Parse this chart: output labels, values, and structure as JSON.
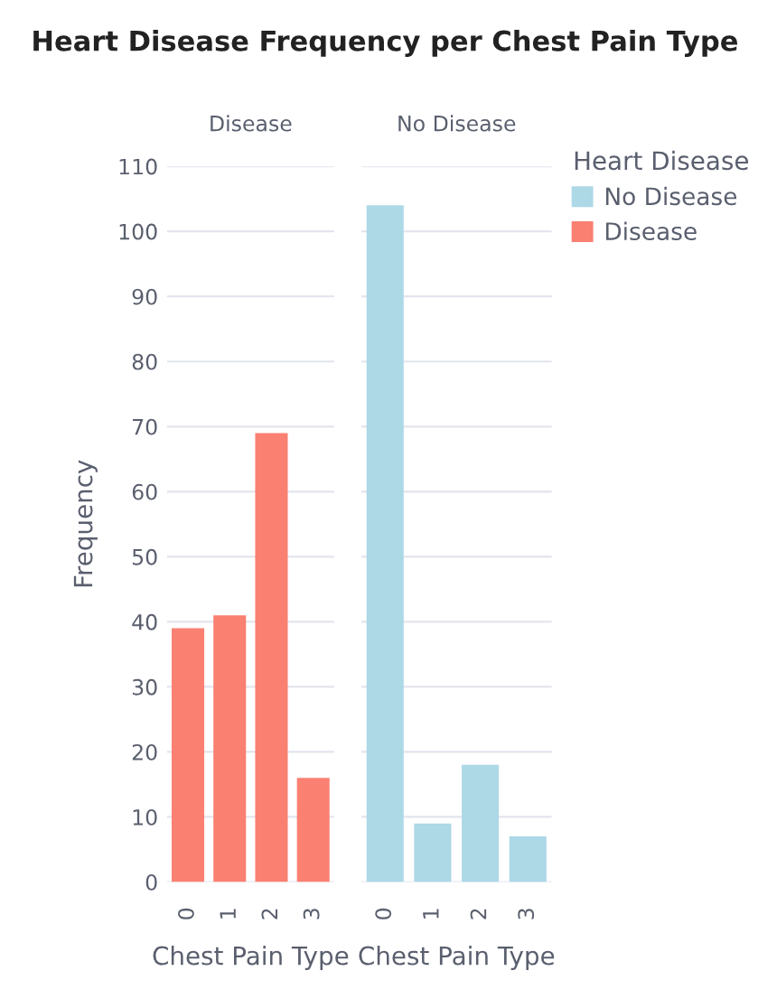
{
  "chart_data": [
    {
      "type": "bar",
      "title": "Heart Disease Frequency per Chest Pain Type",
      "subtitle": "Disease",
      "xlabel": "Chest Pain Type",
      "ylabel": "Frequency",
      "categories": [
        "0",
        "1",
        "2",
        "3"
      ],
      "series": [
        {
          "name": "Disease",
          "color": "#fa8072",
          "values": [
            39,
            41,
            69,
            16
          ]
        }
      ],
      "ylim": [
        0,
        110
      ],
      "yticks": [
        0,
        10,
        20,
        30,
        40,
        50,
        60,
        70,
        80,
        90,
        100,
        110
      ],
      "grid": "y",
      "legend": "right"
    },
    {
      "type": "bar",
      "subtitle": "No Disease",
      "xlabel": "Chest Pain Type",
      "legend_title": "Heart Disease",
      "categories": [
        "0",
        "1",
        "2",
        "3"
      ],
      "series": [
        {
          "name": "No Disease",
          "color": "#add8e6",
          "values": [
            104,
            9,
            18,
            7
          ]
        }
      ],
      "ylim": [
        0,
        110
      ],
      "yticks": [
        0,
        10,
        20,
        30,
        40,
        50,
        60,
        70,
        80,
        90,
        100,
        110
      ],
      "grid": "y",
      "legend": "right",
      "tick_labels": "x"
    }
  ]
}
